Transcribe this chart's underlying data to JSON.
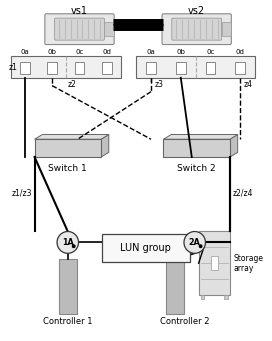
{
  "bg_color": "#ffffff",
  "vs1_label": "vs1",
  "vs2_label": "vs2",
  "ports_left": [
    "0a",
    "0b",
    "0c",
    "0d"
  ],
  "ports_right": [
    "0a",
    "0b",
    "0c",
    "0d"
  ],
  "switch1_label": "Switch 1",
  "switch2_label": "Switch 2",
  "z1z3_label": "z1/z3",
  "z2z4_label": "z2/z4",
  "lun_label": "LUN group",
  "ctrl1_label": "Controller 1",
  "ctrl2_label": "Controller 2",
  "storage_label": "Storage\narray",
  "port1A_label": "1A",
  "port2A_label": "2A"
}
